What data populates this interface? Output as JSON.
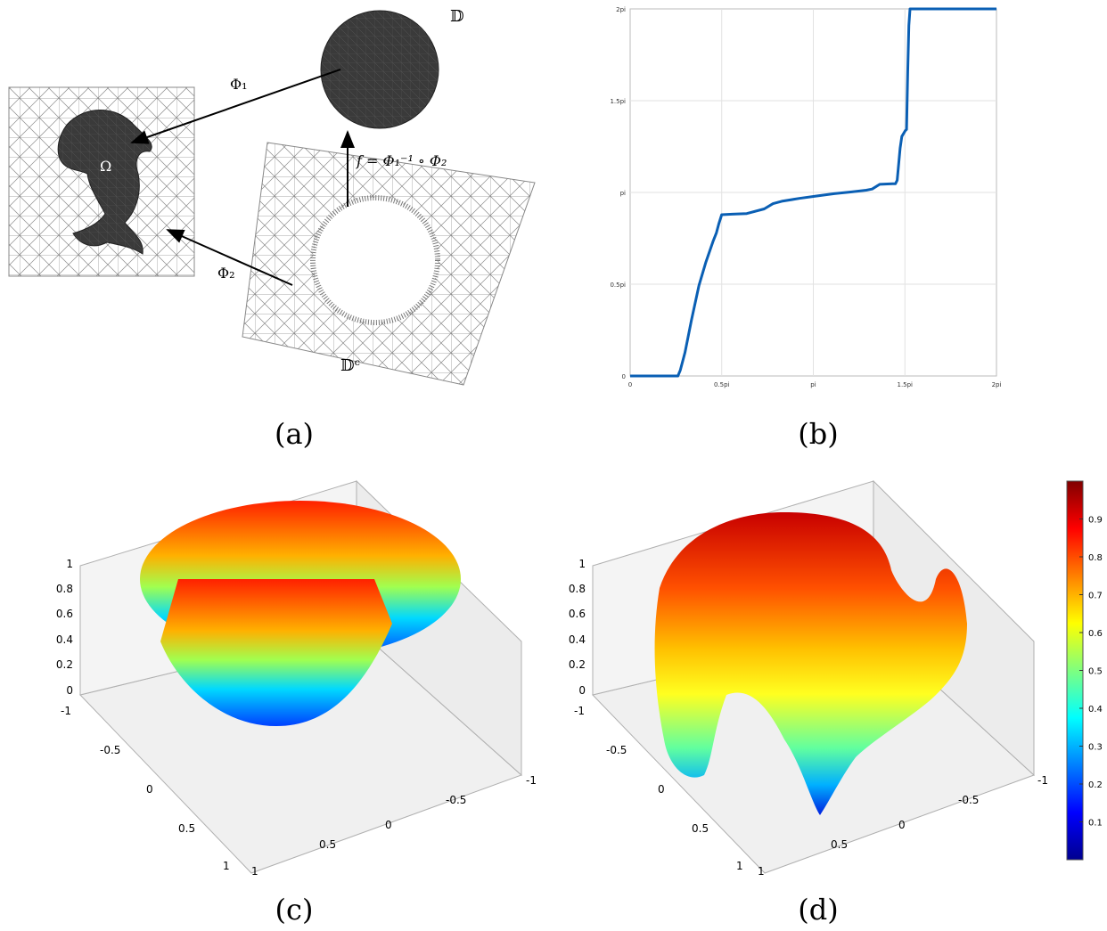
{
  "panel_a": {
    "caption": "(a)",
    "label_D": "𝔻",
    "label_Dc": "𝔻ᶜ",
    "label_Omega": "Ω",
    "label_phi1": "Φ₁",
    "label_phi2": "Φ₂",
    "label_f": "f = Φ₁⁻¹ ∘ Φ₂"
  },
  "panel_b": {
    "caption": "(b)"
  },
  "panel_c": {
    "caption": "(c)",
    "z_ticks": [
      "1",
      "0.8",
      "0.6",
      "0.4",
      "0.2",
      "0"
    ],
    "x_ticks": [
      "-1",
      "-0.5",
      "0",
      "0.5",
      "1"
    ],
    "y_ticks": [
      "1",
      "0.5",
      "0",
      "-0.5",
      "-1"
    ]
  },
  "panel_d": {
    "caption": "(d)",
    "z_ticks": [
      "1",
      "0.8",
      "0.6",
      "0.4",
      "0.2",
      "0"
    ],
    "x_ticks": [
      "-1",
      "-0.5",
      "0",
      "0.5",
      "1"
    ],
    "y_ticks": [
      "1",
      "0.5",
      "0",
      "-0.5",
      "-1"
    ]
  },
  "colorbar": {
    "ticks": [
      "0.9",
      "0.8",
      "0.7",
      "0.6",
      "0.5",
      "0.4",
      "0.3",
      "0.2",
      "0.1"
    ],
    "colormap": "jet"
  },
  "chart_data": {
    "type": "line",
    "x_ticks": [
      "0",
      "0.5pi",
      "pi",
      "1.5pi",
      "2pi"
    ],
    "y_ticks": [
      "0",
      "0.5pi",
      "pi",
      "1.5pi",
      "2pi"
    ],
    "xlim": [
      0,
      6.2832
    ],
    "ylim": [
      0,
      6.2832
    ],
    "grid": true,
    "color": "#0a5fb4",
    "series": [
      {
        "x": [
          0,
          0.82,
          0.86,
          0.94,
          1.05,
          1.18,
          1.3,
          1.42,
          1.48,
          1.52,
          1.57,
          1.75,
          2.0,
          2.3,
          2.45,
          2.6,
          2.9,
          3.2,
          3.5,
          3.8,
          4.05,
          4.15,
          4.28,
          4.5,
          4.55,
          4.58,
          4.63,
          4.66,
          4.72,
          4.74,
          4.76,
          4.78,
          4.8,
          5.0,
          6.2832
        ],
        "y": [
          0,
          0,
          0.1,
          0.4,
          0.95,
          1.55,
          1.95,
          2.3,
          2.45,
          2.6,
          2.76,
          2.77,
          2.78,
          2.86,
          2.95,
          2.99,
          3.04,
          3.08,
          3.12,
          3.15,
          3.18,
          3.2,
          3.28,
          3.29,
          3.29,
          3.35,
          3.9,
          4.1,
          4.2,
          4.22,
          5.2,
          6.0,
          6.2832,
          6.2832,
          6.2832
        ]
      }
    ]
  }
}
